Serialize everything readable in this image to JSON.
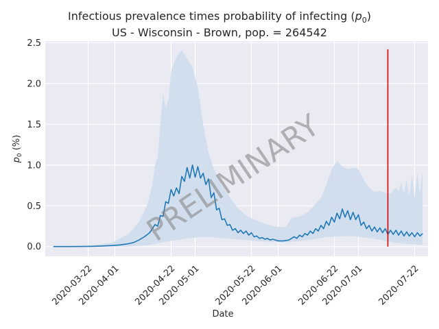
{
  "title_line1_pre": "Infectious prevalence times probability of infecting (",
  "title_p": "p",
  "title_sub": "0",
  "title_line1_post": ")",
  "title_line2": "US - Wisconsin - Brown, pop. = 264542",
  "watermark": "PRELIMINARY",
  "chart_data": {
    "type": "line",
    "xlabel": "Date",
    "ylabel": "p0 (%)",
    "ylim": [
      -0.12,
      2.52
    ],
    "xlim": [
      "2020-03-06",
      "2020-07-27"
    ],
    "grid": true,
    "background": "#eaeaf2",
    "line_color": "#1f77b4",
    "band_color": "#cddcec",
    "marker_color": "#e00000",
    "marker_date": "2020-07-12",
    "marker_range": [
      0,
      2.42
    ],
    "yticks": [
      0.0,
      0.5,
      1.0,
      1.5,
      2.0,
      2.5
    ],
    "ytick_labels": [
      "0.0",
      "0.5",
      "1.0",
      "1.5",
      "2.0",
      "2.5"
    ],
    "xticks": [
      "2020-03-22",
      "2020-04-01",
      "2020-04-22",
      "2020-05-01",
      "2020-05-22",
      "2020-06-01",
      "2020-06-22",
      "2020-07-01",
      "2020-07-22"
    ],
    "series": [
      {
        "role": "median",
        "points": [
          [
            "2020-03-09",
            0.0
          ],
          [
            "2020-03-16",
            0.0
          ],
          [
            "2020-03-23",
            0.003
          ],
          [
            "2020-03-27",
            0.007
          ],
          [
            "2020-03-31",
            0.013
          ],
          [
            "2020-04-03",
            0.02
          ],
          [
            "2020-04-06",
            0.035
          ],
          [
            "2020-04-08",
            0.05
          ],
          [
            "2020-04-10",
            0.08
          ],
          [
            "2020-04-12",
            0.12
          ],
          [
            "2020-04-14",
            0.17
          ],
          [
            "2020-04-16",
            0.27
          ],
          [
            "2020-04-17",
            0.25
          ],
          [
            "2020-04-18",
            0.38
          ],
          [
            "2020-04-19",
            0.37
          ],
          [
            "2020-04-20",
            0.55
          ],
          [
            "2020-04-21",
            0.53
          ],
          [
            "2020-04-22",
            0.7
          ],
          [
            "2020-04-23",
            0.62
          ],
          [
            "2020-04-24",
            0.72
          ],
          [
            "2020-04-25",
            0.65
          ],
          [
            "2020-04-26",
            0.86
          ],
          [
            "2020-04-27",
            0.8
          ],
          [
            "2020-04-28",
            0.97
          ],
          [
            "2020-04-29",
            0.84
          ],
          [
            "2020-04-30",
            1.0
          ],
          [
            "2020-05-01",
            0.85
          ],
          [
            "2020-05-02",
            0.98
          ],
          [
            "2020-05-03",
            0.84
          ],
          [
            "2020-05-04",
            0.9
          ],
          [
            "2020-05-05",
            0.76
          ],
          [
            "2020-05-06",
            0.83
          ],
          [
            "2020-05-07",
            0.6
          ],
          [
            "2020-05-08",
            0.66
          ],
          [
            "2020-05-09",
            0.45
          ],
          [
            "2020-05-10",
            0.47
          ],
          [
            "2020-05-11",
            0.33
          ],
          [
            "2020-05-12",
            0.34
          ],
          [
            "2020-05-13",
            0.26
          ],
          [
            "2020-05-14",
            0.27
          ],
          [
            "2020-05-15",
            0.2
          ],
          [
            "2020-05-16",
            0.22
          ],
          [
            "2020-05-17",
            0.17
          ],
          [
            "2020-05-18",
            0.2
          ],
          [
            "2020-05-19",
            0.16
          ],
          [
            "2020-05-20",
            0.19
          ],
          [
            "2020-05-21",
            0.14
          ],
          [
            "2020-05-22",
            0.17
          ],
          [
            "2020-05-23",
            0.12
          ],
          [
            "2020-05-24",
            0.13
          ],
          [
            "2020-05-25",
            0.1
          ],
          [
            "2020-05-26",
            0.11
          ],
          [
            "2020-05-27",
            0.09
          ],
          [
            "2020-05-28",
            0.1
          ],
          [
            "2020-05-29",
            0.08
          ],
          [
            "2020-05-30",
            0.09
          ],
          [
            "2020-06-01",
            0.07
          ],
          [
            "2020-06-03",
            0.07
          ],
          [
            "2020-06-05",
            0.08
          ],
          [
            "2020-06-06",
            0.1
          ],
          [
            "2020-06-07",
            0.12
          ],
          [
            "2020-06-08",
            0.1
          ],
          [
            "2020-06-09",
            0.14
          ],
          [
            "2020-06-10",
            0.12
          ],
          [
            "2020-06-11",
            0.16
          ],
          [
            "2020-06-12",
            0.14
          ],
          [
            "2020-06-13",
            0.19
          ],
          [
            "2020-06-14",
            0.16
          ],
          [
            "2020-06-15",
            0.22
          ],
          [
            "2020-06-16",
            0.19
          ],
          [
            "2020-06-17",
            0.26
          ],
          [
            "2020-06-18",
            0.22
          ],
          [
            "2020-06-19",
            0.31
          ],
          [
            "2020-06-20",
            0.26
          ],
          [
            "2020-06-21",
            0.36
          ],
          [
            "2020-06-22",
            0.3
          ],
          [
            "2020-06-23",
            0.41
          ],
          [
            "2020-06-24",
            0.34
          ],
          [
            "2020-06-25",
            0.46
          ],
          [
            "2020-06-26",
            0.36
          ],
          [
            "2020-06-27",
            0.44
          ],
          [
            "2020-06-28",
            0.33
          ],
          [
            "2020-06-29",
            0.42
          ],
          [
            "2020-06-30",
            0.33
          ],
          [
            "2020-07-01",
            0.39
          ],
          [
            "2020-07-02",
            0.26
          ],
          [
            "2020-07-03",
            0.3
          ],
          [
            "2020-07-04",
            0.22
          ],
          [
            "2020-07-05",
            0.26
          ],
          [
            "2020-07-06",
            0.19
          ],
          [
            "2020-07-07",
            0.24
          ],
          [
            "2020-07-08",
            0.18
          ],
          [
            "2020-07-09",
            0.23
          ],
          [
            "2020-07-10",
            0.17
          ],
          [
            "2020-07-11",
            0.22
          ],
          [
            "2020-07-12",
            0.15
          ],
          [
            "2020-07-13",
            0.2
          ],
          [
            "2020-07-14",
            0.15
          ],
          [
            "2020-07-15",
            0.2
          ],
          [
            "2020-07-16",
            0.14
          ],
          [
            "2020-07-17",
            0.19
          ],
          [
            "2020-07-18",
            0.13
          ],
          [
            "2020-07-19",
            0.18
          ],
          [
            "2020-07-20",
            0.13
          ],
          [
            "2020-07-21",
            0.17
          ],
          [
            "2020-07-22",
            0.12
          ],
          [
            "2020-07-23",
            0.17
          ],
          [
            "2020-07-24",
            0.13
          ],
          [
            "2020-07-25",
            0.16
          ]
        ]
      },
      {
        "role": "upper_bound",
        "points": [
          [
            "2020-03-09",
            0.0
          ],
          [
            "2020-03-23",
            0.01
          ],
          [
            "2020-03-31",
            0.05
          ],
          [
            "2020-04-06",
            0.15
          ],
          [
            "2020-04-10",
            0.3
          ],
          [
            "2020-04-13",
            0.5
          ],
          [
            "2020-04-15",
            0.75
          ],
          [
            "2020-04-16",
            1.0
          ],
          [
            "2020-04-17",
            1.1
          ],
          [
            "2020-04-18",
            1.5
          ],
          [
            "2020-04-19",
            1.88
          ],
          [
            "2020-04-20",
            1.7
          ],
          [
            "2020-04-21",
            1.8
          ],
          [
            "2020-04-22",
            2.15
          ],
          [
            "2020-04-24",
            2.32
          ],
          [
            "2020-04-26",
            2.41
          ],
          [
            "2020-04-28",
            2.3
          ],
          [
            "2020-04-30",
            2.2
          ],
          [
            "2020-05-02",
            1.95
          ],
          [
            "2020-05-04",
            1.5
          ],
          [
            "2020-05-06",
            1.15
          ],
          [
            "2020-05-08",
            0.95
          ],
          [
            "2020-05-11",
            0.75
          ],
          [
            "2020-05-14",
            0.6
          ],
          [
            "2020-05-17",
            0.47
          ],
          [
            "2020-05-20",
            0.38
          ],
          [
            "2020-05-24",
            0.32
          ],
          [
            "2020-05-28",
            0.27
          ],
          [
            "2020-06-01",
            0.24
          ],
          [
            "2020-06-04",
            0.24
          ],
          [
            "2020-06-06",
            0.35
          ],
          [
            "2020-06-09",
            0.37
          ],
          [
            "2020-06-12",
            0.42
          ],
          [
            "2020-06-15",
            0.52
          ],
          [
            "2020-06-17",
            0.6
          ],
          [
            "2020-06-19",
            0.75
          ],
          [
            "2020-06-21",
            0.95
          ],
          [
            "2020-06-23",
            1.05
          ],
          [
            "2020-06-25",
            0.98
          ],
          [
            "2020-06-27",
            0.95
          ],
          [
            "2020-06-29",
            0.97
          ],
          [
            "2020-07-01",
            0.95
          ],
          [
            "2020-07-03",
            0.82
          ],
          [
            "2020-07-05",
            0.72
          ],
          [
            "2020-07-07",
            0.67
          ],
          [
            "2020-07-09",
            0.68
          ],
          [
            "2020-07-11",
            0.66
          ],
          [
            "2020-07-13",
            0.65
          ],
          [
            "2020-07-15",
            0.72
          ],
          [
            "2020-07-16",
            0.68
          ],
          [
            "2020-07-17",
            0.78
          ],
          [
            "2020-07-18",
            0.65
          ],
          [
            "2020-07-19",
            0.82
          ],
          [
            "2020-07-20",
            0.62
          ],
          [
            "2020-07-21",
            0.88
          ],
          [
            "2020-07-22",
            0.6
          ],
          [
            "2020-07-23",
            0.9
          ],
          [
            "2020-07-24",
            0.65
          ],
          [
            "2020-07-25",
            0.95
          ]
        ]
      },
      {
        "role": "lower_bound",
        "points": [
          [
            "2020-03-09",
            0.0
          ],
          [
            "2020-04-06",
            0.0
          ],
          [
            "2020-04-14",
            0.02
          ],
          [
            "2020-04-20",
            0.06
          ],
          [
            "2020-04-28",
            0.1
          ],
          [
            "2020-05-05",
            0.12
          ],
          [
            "2020-05-12",
            0.1
          ],
          [
            "2020-05-20",
            0.08
          ],
          [
            "2020-05-28",
            0.06
          ],
          [
            "2020-06-04",
            0.05
          ],
          [
            "2020-06-12",
            0.08
          ],
          [
            "2020-06-20",
            0.12
          ],
          [
            "2020-06-28",
            0.13
          ],
          [
            "2020-07-06",
            0.1
          ],
          [
            "2020-07-14",
            0.05
          ],
          [
            "2020-07-20",
            0.03
          ],
          [
            "2020-07-25",
            0.02
          ]
        ]
      }
    ]
  }
}
